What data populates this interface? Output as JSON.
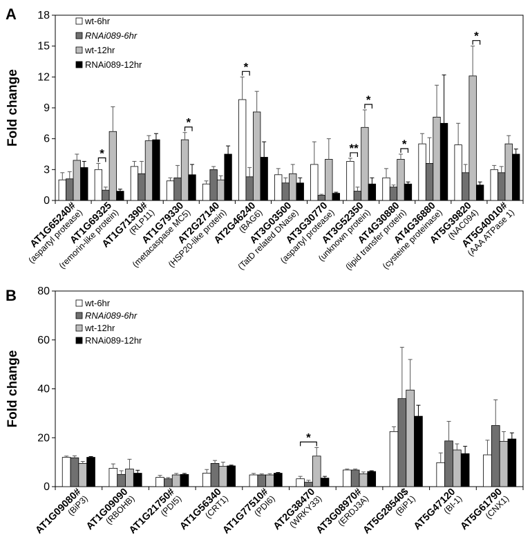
{
  "chart_data": [
    {
      "panel": "A",
      "type": "bar",
      "ylabel": "Fold change",
      "ylim": [
        0,
        18
      ],
      "yticks": [
        0,
        3,
        6,
        9,
        12,
        15,
        18
      ],
      "legend_position": "top-left",
      "categories": [
        {
          "gene": "AT1G65240#",
          "desc": "(aspartyl protease)"
        },
        {
          "gene": "AT1G69325",
          "desc": "(remorin-like protein)"
        },
        {
          "gene": "AT1G71390#",
          "desc": "(RLP11)"
        },
        {
          "gene": "AT1G79330",
          "desc": "(metacaspase MC5)"
        },
        {
          "gene": "AT2G27140",
          "desc": "(HSP20-like protein)"
        },
        {
          "gene": "AT2G46240",
          "desc": "(BAG6)"
        },
        {
          "gene": "AT3G03500",
          "desc": "(TatD related DNase)"
        },
        {
          "gene": "AT3G30770",
          "desc": "(aspartyl protease)"
        },
        {
          "gene": "AT3G52350",
          "desc": "(unknown protein)"
        },
        {
          "gene": "AT4G30880",
          "desc": "(lipid transfer protein)"
        },
        {
          "gene": "AT4G36880",
          "desc": "(cysteine proteinase)"
        },
        {
          "gene": "AT5G39820",
          "desc": "(NAC094)"
        },
        {
          "gene": "AT5G40010#",
          "desc": "(AAA ATPase 1)"
        }
      ],
      "series": [
        {
          "name": "wt-6hr",
          "color": "#ffffff",
          "italic": false,
          "values": [
            2.0,
            3.0,
            3.3,
            1.9,
            1.6,
            9.8,
            2.5,
            3.5,
            3.8,
            2.2,
            5.5,
            5.4,
            3.0
          ],
          "errors": [
            0.7,
            0.6,
            0.5,
            0.3,
            0.3,
            2.2,
            0.6,
            2.2,
            0.3,
            0.9,
            1.0,
            2.1,
            0.4
          ]
        },
        {
          "name": "RNAi089-6hr",
          "color": "#707070",
          "italic": true,
          "values": [
            2.1,
            1.0,
            2.6,
            2.2,
            3.0,
            2.3,
            1.7,
            0.5,
            0.9,
            1.3,
            3.6,
            2.7,
            2.7
          ],
          "errors": [
            0.7,
            0.3,
            1.2,
            1.2,
            0.3,
            0.9,
            0.5,
            0.1,
            0.4,
            0.2,
            2.5,
            0.8,
            0.6
          ]
        },
        {
          "name": "wt-12hr",
          "color": "#bdbdbd",
          "italic": false,
          "values": [
            3.9,
            6.7,
            5.8,
            5.9,
            2.0,
            8.6,
            2.6,
            4.0,
            7.1,
            4.0,
            8.1,
            12.1,
            5.5
          ],
          "errors": [
            0.6,
            2.4,
            0.5,
            0.7,
            0.4,
            2.0,
            0.9,
            2.0,
            1.7,
            0.5,
            3.1,
            2.9,
            0.8
          ]
        },
        {
          "name": "RNAi089-12hr",
          "color": "#000000",
          "italic": false,
          "values": [
            3.2,
            0.9,
            5.9,
            2.5,
            4.5,
            4.2,
            1.7,
            0.7,
            1.6,
            1.6,
            7.5,
            1.5,
            4.5
          ],
          "errors": [
            0.6,
            0.2,
            0.6,
            1.0,
            0.8,
            1.5,
            0.5,
            0.1,
            0.6,
            0.2,
            4.7,
            0.3,
            0.5
          ]
        }
      ],
      "significance": [
        {
          "category": 1,
          "from_series": 0,
          "to_series": 1,
          "label": "*"
        },
        {
          "category": 3,
          "from_series": 2,
          "to_series": 3,
          "label": "*"
        },
        {
          "category": 5,
          "from_series": 0,
          "to_series": 1,
          "label": "*"
        },
        {
          "category": 8,
          "from_series": 0,
          "to_series": 1,
          "label": "**"
        },
        {
          "category": 8,
          "from_series": 2,
          "to_series": 3,
          "label": "*"
        },
        {
          "category": 9,
          "from_series": 2,
          "to_series": 3,
          "label": "*"
        },
        {
          "category": 11,
          "from_series": 2,
          "to_series": 3,
          "label": "*"
        }
      ]
    },
    {
      "panel": "B",
      "type": "bar",
      "ylabel": "Fold change",
      "ylim": [
        0,
        80
      ],
      "yticks": [
        0,
        20,
        40,
        60,
        80
      ],
      "legend_position": "top-left",
      "categories": [
        {
          "gene": "AT1G09080#",
          "desc": "(BiP3)"
        },
        {
          "gene": "AT1G09090",
          "desc": "(RBOHB)"
        },
        {
          "gene": "AT1G21750#",
          "desc": "(PDI5)"
        },
        {
          "gene": "AT1G56340",
          "desc": "(CRT1)"
        },
        {
          "gene": "AT1G77510#",
          "desc": "(PDI6)"
        },
        {
          "gene": "AT2G38470",
          "desc": "(WRKY33)"
        },
        {
          "gene": "AT3G08970#",
          "desc": "(ERDJ3A)"
        },
        {
          "gene": "AT5G28540$",
          "desc": "(BiP1)"
        },
        {
          "gene": "AT5G47120",
          "desc": "(BI-1)"
        },
        {
          "gene": "AT5G61790",
          "desc": "(CNX1)"
        }
      ],
      "series": [
        {
          "name": "wt-6hr",
          "color": "#ffffff",
          "italic": false,
          "values": [
            12.0,
            7.5,
            3.8,
            5.5,
            4.8,
            3.2,
            6.8,
            22.5,
            9.8,
            13.0
          ],
          "errors": [
            0.5,
            1.8,
            0.8,
            1.5,
            0.6,
            1.0,
            0.4,
            2.0,
            4.0,
            6.0
          ]
        },
        {
          "name": "RNAi089-6hr",
          "color": "#707070",
          "italic": true,
          "values": [
            11.8,
            5.0,
            3.2,
            9.5,
            4.8,
            1.8,
            6.8,
            36.0,
            18.7,
            25.0
          ],
          "errors": [
            0.8,
            1.5,
            0.5,
            1.2,
            0.4,
            0.8,
            0.4,
            21.0,
            8.0,
            10.5
          ]
        },
        {
          "name": "wt-12hr",
          "color": "#bdbdbd",
          "italic": false,
          "values": [
            9.5,
            7.2,
            4.8,
            8.3,
            4.8,
            12.5,
            5.2,
            39.5,
            15.0,
            18.5
          ],
          "errors": [
            0.8,
            4.0,
            0.6,
            1.7,
            0.5,
            3.5,
            0.8,
            12.5,
            2.5,
            4.0
          ]
        },
        {
          "name": "RNAi089-12hr",
          "color": "#000000",
          "italic": false,
          "values": [
            12.0,
            5.5,
            5.0,
            8.5,
            5.5,
            3.5,
            6.2,
            28.8,
            13.5,
            19.5
          ],
          "errors": [
            0.3,
            1.2,
            0.4,
            0.3,
            0.3,
            0.7,
            0.3,
            4.5,
            3.0,
            2.5
          ]
        }
      ],
      "significance": [
        {
          "category": 5,
          "from_series": 0,
          "to_series": 2,
          "label": "*"
        }
      ]
    }
  ]
}
